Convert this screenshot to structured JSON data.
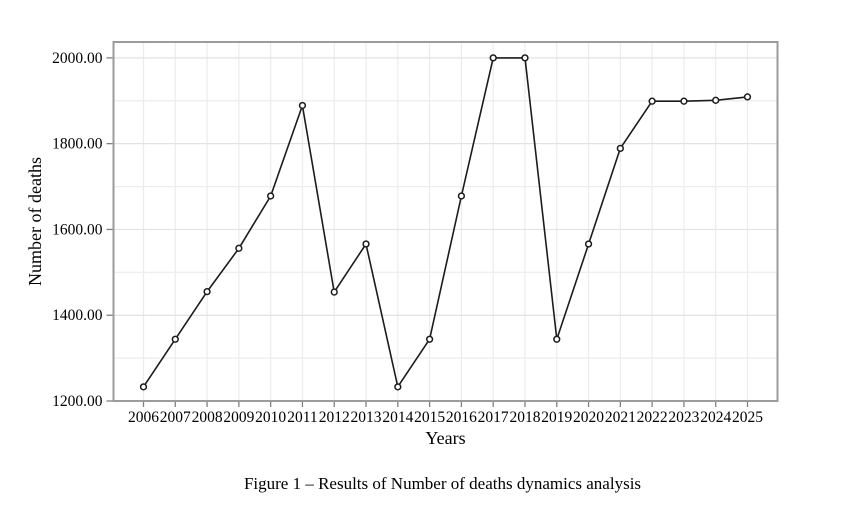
{
  "figure": {
    "caption": "Figure 1 – Results of Number of deaths dynamics analysis"
  },
  "chart_data": {
    "type": "line",
    "title": "",
    "xlabel": "Years",
    "ylabel": "Number of deaths",
    "x": [
      2006,
      2007,
      2008,
      2009,
      2010,
      2011,
      2012,
      2013,
      2014,
      2015,
      2016,
      2017,
      2018,
      2019,
      2020,
      2021,
      2022,
      2023,
      2024,
      2025
    ],
    "series": [
      {
        "name": "Number of deaths",
        "values": [
          1233,
          1344,
          1455,
          1556,
          1678,
          1889,
          1454,
          1566,
          1233,
          1344,
          1678,
          2000,
          2000,
          1344,
          1566,
          1789,
          1899,
          1899,
          1901,
          1909
        ]
      }
    ],
    "ylim": [
      1200,
      2037
    ],
    "yticks": [
      1200,
      1400,
      1600,
      1800,
      2000
    ],
    "ytick_decimals": 2,
    "minor_grid_step": 100,
    "grid": "on",
    "legend": "none",
    "marker": "open-circle",
    "colors": {
      "line": "#1c1c1c",
      "marker_fill": "#ffffff",
      "grid_minor": "#ececec",
      "grid_major": "#e2e2e2",
      "border": "#9b9b9b",
      "tick": "#808080",
      "text": "#000000"
    }
  }
}
